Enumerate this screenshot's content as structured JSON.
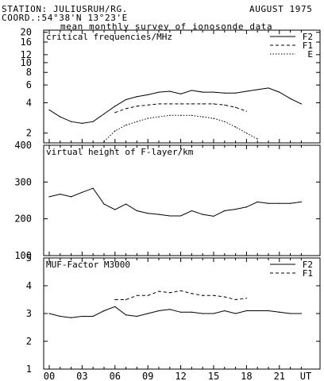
{
  "header": {
    "station": "STATION: JULIUSRUH/RG.",
    "coord": "COORD.:54°38'N 13°23'E",
    "date": "AUGUST 1975",
    "subtitle": "mean monthly survey of ionosonde data"
  },
  "chart_data": [
    {
      "type": "line",
      "title": "critical frequencies/MHz",
      "yscale": "log",
      "ylim": [
        1.6,
        21
      ],
      "yticks": [
        "2",
        "4",
        "6",
        "8",
        "10",
        "12",
        "16",
        "20"
      ],
      "xlim": [
        0,
        24
      ],
      "legend": "top-right",
      "series": [
        {
          "name": "F2",
          "style": "solid",
          "x": [
            0,
            1,
            2,
            3,
            4,
            5,
            6,
            7,
            8,
            9,
            10,
            11,
            12,
            13,
            14,
            15,
            16,
            17,
            18,
            19,
            20,
            21,
            22,
            23
          ],
          "values": [
            3.4,
            2.9,
            2.6,
            2.5,
            2.6,
            3.1,
            3.7,
            4.3,
            4.6,
            4.8,
            5.1,
            5.2,
            4.9,
            5.3,
            5.1,
            5.1,
            5.0,
            5.0,
            5.2,
            5.4,
            5.6,
            5.1,
            4.4,
            3.9
          ]
        },
        {
          "name": "F1",
          "style": "dashed",
          "x": [
            6,
            7,
            8,
            9,
            10,
            11,
            12,
            13,
            14,
            15,
            16,
            17,
            18
          ],
          "values": [
            3.2,
            3.5,
            3.7,
            3.8,
            3.9,
            3.9,
            3.9,
            3.9,
            3.9,
            3.9,
            3.8,
            3.6,
            3.3
          ]
        },
        {
          "name": "E",
          "style": "dotted",
          "x": [
            5,
            6,
            7,
            8,
            9,
            10,
            11,
            12,
            13,
            14,
            15,
            16,
            17,
            18,
            19
          ],
          "values": [
            1.65,
            2.1,
            2.4,
            2.6,
            2.8,
            2.9,
            3.0,
            3.0,
            3.0,
            2.9,
            2.8,
            2.6,
            2.3,
            2.0,
            1.75
          ]
        }
      ]
    },
    {
      "type": "line",
      "title": "virtual height of F-layer/km",
      "ylim": [
        100,
        400
      ],
      "yticks": [
        "100",
        "200",
        "300",
        "400"
      ],
      "xlim": [
        0,
        24
      ],
      "series": [
        {
          "name": "",
          "style": "solid",
          "x": [
            0,
            1,
            2,
            3,
            4,
            5,
            6,
            7,
            8,
            9,
            10,
            11,
            12,
            13,
            14,
            15,
            16,
            17,
            18,
            19,
            20,
            21,
            22,
            23
          ],
          "values": [
            260,
            267,
            260,
            272,
            283,
            240,
            225,
            240,
            222,
            215,
            212,
            208,
            208,
            222,
            212,
            207,
            222,
            226,
            232,
            246,
            242,
            242,
            242,
            246
          ]
        }
      ]
    },
    {
      "type": "line",
      "title": "MUF-Factor M3000",
      "ylim": [
        1,
        5
      ],
      "yticks": [
        "1",
        "2",
        "3",
        "4",
        "5"
      ],
      "xlim": [
        0,
        24
      ],
      "xticks": [
        "00",
        "03",
        "06",
        "09",
        "12",
        "15",
        "18",
        "21",
        "UT"
      ],
      "legend": "top-right",
      "series": [
        {
          "name": "F2",
          "style": "solid",
          "x": [
            0,
            1,
            2,
            3,
            4,
            5,
            6,
            7,
            8,
            9,
            10,
            11,
            12,
            13,
            14,
            15,
            16,
            17,
            18,
            19,
            20,
            21,
            22,
            23
          ],
          "values": [
            3.0,
            2.9,
            2.85,
            2.9,
            2.9,
            3.1,
            3.25,
            2.95,
            2.9,
            3.0,
            3.1,
            3.15,
            3.05,
            3.05,
            3.0,
            3.0,
            3.1,
            3.0,
            3.1,
            3.1,
            3.1,
            3.05,
            3.0,
            3.0
          ]
        },
        {
          "name": "F1",
          "style": "dashed",
          "x": [
            6,
            7,
            8,
            9,
            10,
            11,
            12,
            13,
            14,
            15,
            16,
            17,
            18
          ],
          "values": [
            3.5,
            3.5,
            3.65,
            3.65,
            3.8,
            3.75,
            3.82,
            3.72,
            3.65,
            3.65,
            3.6,
            3.5,
            3.55
          ]
        }
      ]
    }
  ]
}
